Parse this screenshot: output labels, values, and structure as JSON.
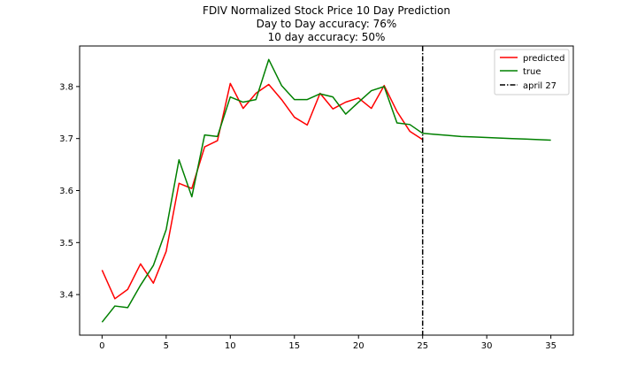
{
  "chart_data": {
    "type": "line",
    "title": "FDIV Normalized Stock Price 10 Day Prediction",
    "subtitle_lines": [
      "Day to Day accuracy: 76%",
      "10 day accuracy: 50%"
    ],
    "xlabel": "",
    "ylabel": "",
    "xlim": [
      -1.75,
      36.75
    ],
    "ylim": [
      3.322,
      3.878
    ],
    "xticks": [
      0,
      5,
      10,
      15,
      20,
      25,
      30,
      35
    ],
    "yticks": [
      3.4,
      3.5,
      3.6,
      3.7,
      3.8
    ],
    "ytick_labels": [
      "3.4",
      "3.5",
      "3.6",
      "3.7",
      "3.8"
    ],
    "grid": false,
    "legend_position": "top-right",
    "series": [
      {
        "name": "predicted",
        "color": "#ff0000",
        "x": [
          0,
          1,
          2,
          3,
          4,
          5,
          6,
          7,
          8,
          9,
          10,
          11,
          12,
          13,
          14,
          15,
          16,
          17,
          18,
          19,
          20,
          21,
          22,
          23,
          24,
          25
        ],
        "y": [
          3.447,
          3.392,
          3.41,
          3.459,
          3.422,
          3.483,
          3.614,
          3.604,
          3.684,
          3.696,
          3.806,
          3.758,
          3.787,
          3.804,
          3.775,
          3.741,
          3.726,
          3.787,
          3.757,
          3.77,
          3.778,
          3.758,
          3.802,
          3.752,
          3.714,
          3.698
        ]
      },
      {
        "name": "true",
        "color": "#008000",
        "x": [
          0,
          1,
          2,
          3,
          4,
          5,
          6,
          7,
          8,
          9,
          10,
          11,
          12,
          13,
          14,
          15,
          16,
          17,
          18,
          19,
          20,
          21,
          22,
          23,
          24,
          25,
          26,
          27,
          28,
          29,
          30,
          31,
          32,
          33,
          34,
          35
        ],
        "y": [
          3.347,
          3.378,
          3.375,
          3.418,
          3.456,
          3.525,
          3.659,
          3.588,
          3.707,
          3.704,
          3.78,
          3.77,
          3.775,
          3.852,
          3.802,
          3.775,
          3.775,
          3.786,
          3.78,
          3.747,
          3.77,
          3.792,
          3.8,
          3.73,
          3.727,
          3.71,
          3.708,
          3.706,
          3.704,
          3.703,
          3.702,
          3.701,
          3.7,
          3.699,
          3.698,
          3.697
        ]
      }
    ],
    "vertical_line": {
      "name": "april 27",
      "x": 25,
      "color": "#000000",
      "style": "dash-dot"
    }
  }
}
